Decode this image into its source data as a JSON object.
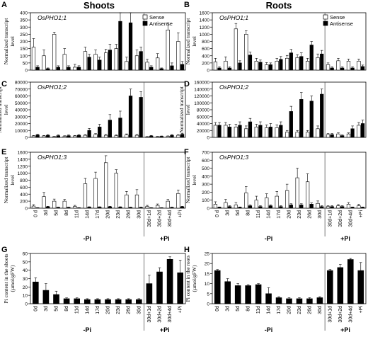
{
  "columns": {
    "left_title": "Shoots",
    "right_title": "Roots"
  },
  "chart_data": [
    {
      "panel": "A",
      "type": "bar",
      "gene": "OsPHO1;1",
      "ylabel": [
        "Normalized transcript",
        "level"
      ],
      "ylim": [
        0,
        400
      ],
      "yticks": [
        0,
        50,
        100,
        150,
        200,
        250,
        300,
        350,
        400
      ],
      "legend": [
        "Sense",
        "Antisense"
      ],
      "categories": [
        "0 d",
        "3d",
        "5d",
        "8d",
        "11d",
        "14d",
        "17d",
        "20d",
        "23d",
        "26d",
        "30d",
        "30d+1d",
        "30d+2d",
        "30d+4d",
        "+Pi"
      ],
      "series": [
        {
          "name": "Sense",
          "values": [
            160,
            100,
            250,
            110,
            20,
            130,
            110,
            120,
            150,
            60,
            100,
            55,
            85,
            280,
            200
          ],
          "errors": [
            60,
            40,
            15,
            40,
            20,
            30,
            30,
            25,
            30,
            30,
            40,
            20,
            30,
            50,
            60
          ]
        },
        {
          "name": "Antisense",
          "values": [
            20,
            10,
            20,
            20,
            20,
            90,
            70,
            140,
            340,
            330,
            130,
            20,
            10,
            30,
            40
          ],
          "errors": [
            10,
            5,
            10,
            10,
            10,
            20,
            20,
            40,
            60,
            70,
            30,
            10,
            5,
            20,
            20
          ]
        }
      ]
    },
    {
      "panel": "B",
      "type": "bar",
      "gene": "OsPHO1;1",
      "ylabel": [
        "Normalized transcript",
        "level"
      ],
      "ylim": [
        0,
        1600
      ],
      "yticks": [
        0,
        200,
        400,
        600,
        800,
        1000,
        1200,
        1400,
        1600
      ],
      "legend": [
        "Sense",
        "Antisense"
      ],
      "categories": [
        "0 d",
        "3d",
        "5d",
        "8d",
        "11d",
        "14d",
        "17d",
        "20d",
        "23d",
        "26d",
        "30d",
        "30d+1d",
        "30d+2d",
        "30d+4d",
        "+Pi"
      ],
      "series": [
        {
          "name": "Sense",
          "values": [
            230,
            250,
            1150,
            1000,
            250,
            150,
            250,
            330,
            350,
            250,
            350,
            150,
            260,
            250,
            250
          ],
          "errors": [
            100,
            120,
            150,
            100,
            80,
            60,
            80,
            80,
            80,
            80,
            100,
            50,
            70,
            60,
            60
          ]
        },
        {
          "name": "Antisense",
          "values": [
            60,
            60,
            200,
            420,
            220,
            150,
            300,
            480,
            380,
            700,
            450,
            60,
            60,
            60,
            100
          ],
          "errors": [
            30,
            30,
            60,
            80,
            60,
            50,
            80,
            100,
            100,
            100,
            100,
            30,
            30,
            30,
            40
          ]
        }
      ]
    },
    {
      "panel": "C",
      "type": "bar",
      "gene": "OsPHO1;2",
      "ylabel": [
        "Normalized transcript",
        "level"
      ],
      "ylim": [
        0,
        80000
      ],
      "yticks": [
        0,
        10000,
        20000,
        30000,
        40000,
        50000,
        60000,
        70000,
        80000
      ],
      "categories": [
        "0 d",
        "3d",
        "5d",
        "8d",
        "11d",
        "14d",
        "17d",
        "20d",
        "23d",
        "26d",
        "30d",
        "30d+1d",
        "30d+2d",
        "30d+4d",
        "+Pi"
      ],
      "series": [
        {
          "name": "Sense",
          "values": [
            2000,
            2000,
            1000,
            1500,
            2000,
            3000,
            4000,
            3000,
            2500,
            3500,
            3000,
            800,
            1000,
            1500,
            3000
          ],
          "errors": [
            800,
            800,
            500,
            800,
            800,
            1000,
            1500,
            1200,
            1000,
            1500,
            1200,
            400,
            500,
            600,
            1000
          ]
        },
        {
          "name": "Antisense",
          "values": [
            3500,
            3000,
            2500,
            2500,
            3000,
            10000,
            15000,
            25000,
            28000,
            60000,
            58000,
            2000,
            1500,
            3000,
            4500
          ],
          "errors": [
            1000,
            1000,
            1000,
            1000,
            1000,
            3000,
            4000,
            8000,
            10000,
            10000,
            8000,
            800,
            500,
            1000,
            1200
          ]
        }
      ]
    },
    {
      "panel": "D",
      "type": "bar",
      "gene": "OsPHO1;2",
      "ylabel": [
        "Normalized transcript",
        "level"
      ],
      "ylim": [
        0,
        160000
      ],
      "yticks": [
        0,
        20000,
        40000,
        60000,
        80000,
        100000,
        120000,
        140000,
        160000
      ],
      "categories": [
        "0 d",
        "3d",
        "5d",
        "8d",
        "11d",
        "14d",
        "17d",
        "20d",
        "23d",
        "26d",
        "30d",
        "30d+1d",
        "30d+2d",
        "30d+4d",
        "+Pi"
      ],
      "series": [
        {
          "name": "Sense",
          "values": [
            35000,
            35000,
            30000,
            25000,
            30000,
            28000,
            28000,
            15000,
            15000,
            15000,
            25000,
            8000,
            10000,
            10000,
            35000
          ],
          "errors": [
            8000,
            8000,
            8000,
            8000,
            8000,
            8000,
            8000,
            5000,
            5000,
            5000,
            8000,
            3000,
            3000,
            3000,
            8000
          ]
        },
        {
          "name": "Antisense",
          "values": [
            35000,
            30000,
            35000,
            45000,
            35000,
            30000,
            35000,
            75000,
            110000,
            105000,
            125000,
            8000,
            5000,
            25000,
            40000
          ],
          "errors": [
            8000,
            8000,
            10000,
            10000,
            10000,
            10000,
            10000,
            15000,
            20000,
            15000,
            15000,
            3000,
            2000,
            8000,
            10000
          ]
        }
      ]
    },
    {
      "panel": "E",
      "type": "bar",
      "gene": "OsPHO1;3",
      "ylabel": [
        "Normalized transcript",
        "level"
      ],
      "ylim": [
        0,
        1600
      ],
      "yticks": [
        0,
        200,
        400,
        600,
        800,
        1000,
        1200,
        1400,
        1600
      ],
      "categories": [
        "0 d",
        "3d",
        "5d",
        "8d",
        "11d",
        "14d",
        "17d",
        "20d",
        "23d",
        "26d",
        "30d",
        "30d+1d",
        "30d+2d",
        "30d+4d",
        "+Pi"
      ],
      "series": [
        {
          "name": "Sense",
          "values": [
            60,
            330,
            200,
            200,
            50,
            700,
            850,
            1300,
            1000,
            380,
            380,
            50,
            80,
            200,
            420
          ],
          "errors": [
            40,
            120,
            60,
            50,
            30,
            150,
            180,
            200,
            100,
            100,
            150,
            30,
            40,
            50,
            100
          ]
        },
        {
          "name": "Antisense",
          "values": [
            10,
            40,
            20,
            20,
            10,
            30,
            30,
            40,
            30,
            20,
            20,
            10,
            10,
            20,
            40
          ],
          "errors": [
            5,
            15,
            10,
            10,
            5,
            10,
            10,
            15,
            10,
            10,
            10,
            5,
            5,
            10,
            15
          ]
        }
      ]
    },
    {
      "panel": "F",
      "type": "bar",
      "gene": "OsPHO1;3",
      "ylabel": [
        "Normalized transcript",
        "level"
      ],
      "ylim": [
        0,
        700
      ],
      "yticks": [
        0,
        100,
        200,
        300,
        400,
        500,
        600,
        700
      ],
      "categories": [
        "0 d",
        "3d",
        "5d",
        "8d",
        "11d",
        "14d",
        "17d",
        "20d",
        "23d",
        "26d",
        "30d",
        "30d+1d",
        "30d+2d",
        "30d+4d",
        "+Pi"
      ],
      "series": [
        {
          "name": "Sense",
          "values": [
            50,
            70,
            40,
            190,
            100,
            130,
            150,
            220,
            380,
            330,
            60,
            20,
            30,
            50,
            30
          ],
          "errors": [
            30,
            40,
            30,
            80,
            50,
            50,
            60,
            80,
            120,
            100,
            30,
            10,
            15,
            20,
            20
          ]
        },
        {
          "name": "Antisense",
          "values": [
            10,
            20,
            10,
            30,
            20,
            30,
            20,
            40,
            40,
            50,
            20,
            20,
            20,
            10,
            10
          ],
          "errors": [
            5,
            10,
            5,
            10,
            10,
            10,
            10,
            15,
            15,
            15,
            10,
            10,
            10,
            5,
            5
          ]
        }
      ]
    },
    {
      "panel": "G",
      "type": "bar",
      "ylabel": [
        "Pi content in the shoots",
        "(µmol/gFW)"
      ],
      "ylim": [
        0,
        60
      ],
      "yticks": [
        0,
        10,
        20,
        30,
        40,
        50,
        60
      ],
      "categories": [
        "0d",
        "3d",
        "5d",
        "8d",
        "11d",
        "14d",
        "17d",
        "20d",
        "23d",
        "26d",
        "30d",
        "30d+1d",
        "30d+2d",
        "30d+4d",
        "+Pi"
      ],
      "series": [
        {
          "name": "",
          "values": [
            26,
            16,
            11,
            6,
            6,
            5,
            5,
            5,
            5,
            5,
            5,
            24,
            38,
            53,
            37
          ],
          "errors": [
            5,
            8,
            4,
            1,
            1,
            1,
            1,
            1,
            1,
            1,
            1,
            10,
            5,
            3,
            15
          ]
        }
      ]
    },
    {
      "panel": "H",
      "type": "bar",
      "ylabel": [
        "Pi content in the roots",
        "(µmol/gFW)"
      ],
      "ylim": [
        0,
        25
      ],
      "yticks": [
        0,
        5,
        10,
        15,
        20,
        25
      ],
      "categories": [
        "0d",
        "3d",
        "5d",
        "8d",
        "11d",
        "14d",
        "17d",
        "20d",
        "23d",
        "26d",
        "30d",
        "30d+1d",
        "30d+2d",
        "30d+4d",
        "+Pi"
      ],
      "series": [
        {
          "name": "",
          "values": [
            16.5,
            11,
            9,
            9,
            9.5,
            5,
            3,
            2.5,
            2.5,
            2.5,
            3,
            16.5,
            18,
            22,
            16.5
          ],
          "errors": [
            0.5,
            1.5,
            1,
            0.5,
            0.5,
            3,
            0.5,
            0.5,
            0.5,
            0.5,
            0.5,
            0.5,
            1.5,
            0.5,
            4
          ]
        }
      ]
    }
  ],
  "treatments": {
    "minus": "-Pi",
    "plus": "+Pi"
  }
}
